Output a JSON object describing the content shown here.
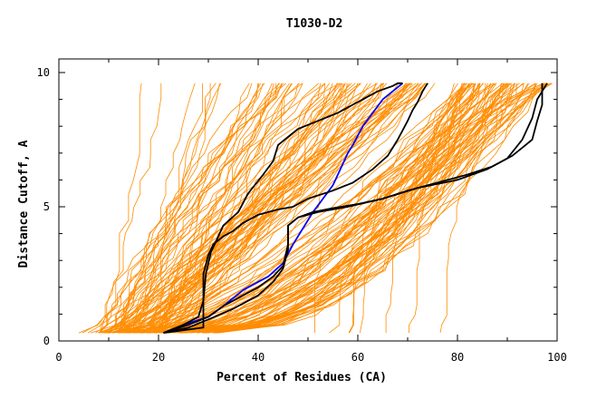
{
  "chart_data": {
    "type": "line",
    "title": "T1030-D2",
    "xlabel": "Percent of Residues (CA)",
    "ylabel": "Distance Cutoff, A",
    "xlim": [
      0,
      100
    ],
    "ylim": [
      0,
      10
    ],
    "x_ticks": [
      "0",
      "20",
      "40",
      "60",
      "80",
      "100"
    ],
    "y_ticks": [
      "0",
      "5",
      "10"
    ],
    "grid": false,
    "colors": {
      "background_models": "#ff8c00",
      "highlight_black": "#000000",
      "highlight_blue": "#0000ff"
    },
    "series": [
      {
        "color": "#0000ff",
        "x": [
          21,
          25,
          30,
          33,
          37,
          42,
          45,
          47,
          49,
          51,
          53,
          55,
          57,
          58,
          59,
          61,
          63,
          65,
          67,
          69
        ],
        "y": [
          0.3,
          0.6,
          0.9,
          1.3,
          1.9,
          2.4,
          2.9,
          3.6,
          4.2,
          4.8,
          5.3,
          5.8,
          6.6,
          7.0,
          7.3,
          8.0,
          8.5,
          9.0,
          9.3,
          9.6
        ]
      },
      {
        "color": "#000000",
        "x": [
          21,
          26,
          30,
          33,
          36,
          40,
          43,
          45,
          46,
          46,
          48,
          51,
          55,
          60,
          65,
          72,
          80,
          86,
          90,
          93,
          95,
          96,
          97,
          98
        ],
        "y": [
          0.3,
          0.6,
          0.9,
          1.3,
          1.6,
          2.0,
          2.4,
          2.8,
          3.6,
          4.3,
          4.6,
          4.8,
          4.95,
          5.1,
          5.3,
          5.7,
          6.0,
          6.4,
          6.8,
          7.5,
          8.3,
          9.0,
          9.3,
          9.6
        ]
      },
      {
        "color": "#000000",
        "x": [
          21,
          25,
          28,
          29,
          29.5,
          30.5,
          32,
          33,
          36,
          38,
          41,
          43,
          44,
          46,
          48,
          52,
          56,
          59,
          62,
          64,
          67,
          68,
          69
        ],
        "y": [
          0.3,
          0.6,
          0.9,
          1.5,
          2.5,
          3.3,
          3.9,
          4.3,
          4.8,
          5.5,
          6.2,
          6.7,
          7.3,
          7.6,
          7.9,
          8.2,
          8.5,
          8.8,
          9.1,
          9.3,
          9.5,
          9.6,
          9.6
        ]
      },
      {
        "color": "#000000",
        "x": [
          21,
          29,
          29,
          29,
          30,
          31,
          33,
          35,
          37,
          40,
          42,
          44,
          47,
          50,
          55,
          59,
          63,
          66,
          68,
          70,
          71,
          72,
          73,
          74
        ],
        "y": [
          0.3,
          0.5,
          1.5,
          2.5,
          3.2,
          3.6,
          3.9,
          4.1,
          4.4,
          4.7,
          4.8,
          4.9,
          5.0,
          5.3,
          5.6,
          5.9,
          6.4,
          6.9,
          7.5,
          8.2,
          8.6,
          8.9,
          9.3,
          9.6
        ]
      },
      {
        "color": "#000000",
        "x": [
          21,
          26,
          30,
          35,
          40,
          43,
          45,
          46,
          46,
          48,
          52,
          58,
          65,
          70,
          76,
          82,
          87,
          91,
          93,
          95,
          96,
          97,
          97,
          97
        ],
        "y": [
          0.3,
          0.5,
          0.8,
          1.2,
          1.7,
          2.2,
          2.7,
          3.4,
          4.3,
          4.6,
          4.8,
          5.0,
          5.3,
          5.6,
          5.9,
          6.2,
          6.5,
          6.9,
          7.2,
          7.5,
          8.2,
          8.8,
          9.3,
          9.6
        ]
      }
    ]
  }
}
